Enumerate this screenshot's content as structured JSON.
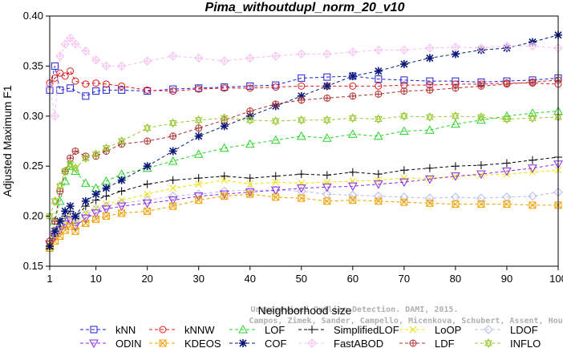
{
  "chart_data": {
    "type": "line",
    "title": "Pima_withoutdupl_norm_20_v10",
    "xlabel": "Neighborhood size",
    "ylabel": "Adjusted Maximum F1",
    "xlim": [
      1,
      100
    ],
    "ylim": [
      0.15,
      0.4
    ],
    "xticks": [
      1,
      10,
      20,
      30,
      40,
      50,
      60,
      70,
      80,
      90,
      100
    ],
    "yticks": [
      0.15,
      0.2,
      0.25,
      0.3,
      0.35,
      0.4
    ],
    "xtick_labels": [
      "1",
      "10",
      "20",
      "30",
      "40",
      "50",
      "60",
      "70",
      "80",
      "90",
      "100"
    ],
    "ytick_labels": [
      "0.15",
      "0.20",
      "0.25",
      "0.30",
      "0.35",
      "0.40"
    ],
    "grid": false,
    "legend_position": "bottom",
    "watermark": [
      "Unsupervised Outlier Detection. DAMI, 2015.",
      "Campos, Zimek, Sander, Campello, Micenkova, Schubert, Assent, Houle"
    ],
    "series": [
      {
        "name": "kNN",
        "color": "#1f1fd6",
        "marker": "square",
        "x": [
          1,
          2,
          3,
          5,
          8,
          10,
          12,
          15,
          20,
          25,
          30,
          35,
          40,
          45,
          50,
          55,
          60,
          65,
          70,
          75,
          80,
          85,
          90,
          95,
          100
        ],
        "values": [
          0.326,
          0.35,
          0.326,
          0.328,
          0.32,
          0.325,
          0.326,
          0.326,
          0.325,
          0.327,
          0.328,
          0.329,
          0.33,
          0.331,
          0.338,
          0.339,
          0.34,
          0.337,
          0.336,
          0.335,
          0.335,
          0.334,
          0.335,
          0.336,
          0.338
        ]
      },
      {
        "name": "kNNW",
        "color": "#e01a1a",
        "marker": "circle",
        "x": [
          1,
          2,
          3,
          4,
          5,
          6,
          8,
          10,
          12,
          15,
          20,
          25,
          30,
          35,
          40,
          45,
          50,
          55,
          60,
          65,
          70,
          75,
          80,
          85,
          90,
          95,
          100
        ],
        "values": [
          0.333,
          0.338,
          0.343,
          0.34,
          0.345,
          0.335,
          0.332,
          0.333,
          0.332,
          0.33,
          0.326,
          0.325,
          0.327,
          0.328,
          0.328,
          0.329,
          0.33,
          0.33,
          0.33,
          0.33,
          0.331,
          0.331,
          0.332,
          0.332,
          0.333,
          0.333,
          0.332
        ]
      },
      {
        "name": "LOF",
        "color": "#2ad42a",
        "marker": "triangle-up",
        "x": [
          1,
          2,
          3,
          4,
          5,
          6,
          8,
          10,
          12,
          15,
          20,
          25,
          30,
          35,
          40,
          45,
          50,
          55,
          60,
          65,
          70,
          75,
          80,
          85,
          90,
          95,
          100
        ],
        "values": [
          0.17,
          0.195,
          0.215,
          0.235,
          0.25,
          0.245,
          0.233,
          0.228,
          0.235,
          0.242,
          0.248,
          0.255,
          0.262,
          0.268,
          0.272,
          0.276,
          0.28,
          0.278,
          0.282,
          0.28,
          0.285,
          0.286,
          0.292,
          0.296,
          0.3,
          0.303,
          0.305
        ]
      },
      {
        "name": "SimplifiedLOF",
        "color": "#000000",
        "marker": "plus",
        "x": [
          1,
          2,
          3,
          4,
          5,
          6,
          8,
          10,
          12,
          15,
          20,
          25,
          30,
          35,
          40,
          45,
          50,
          55,
          60,
          65,
          70,
          75,
          80,
          85,
          90,
          95,
          100
        ],
        "values": [
          0.168,
          0.18,
          0.19,
          0.2,
          0.205,
          0.198,
          0.21,
          0.216,
          0.22,
          0.225,
          0.232,
          0.236,
          0.238,
          0.24,
          0.238,
          0.24,
          0.242,
          0.241,
          0.244,
          0.242,
          0.246,
          0.248,
          0.25,
          0.251,
          0.253,
          0.256,
          0.259
        ]
      },
      {
        "name": "LoOP",
        "color": "#f0e000",
        "marker": "cross",
        "x": [
          1,
          2,
          3,
          4,
          5,
          6,
          8,
          10,
          12,
          15,
          20,
          25,
          30,
          35,
          40,
          45,
          50,
          55,
          60,
          65,
          70,
          75,
          80,
          85,
          90,
          95,
          100
        ],
        "values": [
          0.172,
          0.178,
          0.185,
          0.192,
          0.198,
          0.192,
          0.203,
          0.208,
          0.212,
          0.216,
          0.222,
          0.228,
          0.232,
          0.236,
          0.232,
          0.234,
          0.233,
          0.234,
          0.235,
          0.236,
          0.238,
          0.238,
          0.24,
          0.241,
          0.242,
          0.244,
          0.246
        ]
      },
      {
        "name": "LDOF",
        "color": "#b8b8e8",
        "marker": "diamond",
        "x": [
          1,
          2,
          3,
          4,
          5,
          6,
          8,
          10,
          12,
          15,
          20,
          25,
          30,
          35,
          40,
          45,
          50,
          55,
          60,
          65,
          70,
          75,
          80,
          85,
          90,
          95,
          100
        ],
        "values": [
          0.175,
          0.182,
          0.188,
          0.195,
          0.2,
          0.194,
          0.202,
          0.207,
          0.21,
          0.213,
          0.216,
          0.22,
          0.222,
          0.225,
          0.226,
          0.226,
          0.225,
          0.222,
          0.221,
          0.22,
          0.219,
          0.218,
          0.219,
          0.218,
          0.219,
          0.22,
          0.224
        ]
      },
      {
        "name": "ODIN",
        "color": "#8a2be2",
        "marker": "triangle-down",
        "x": [
          1,
          2,
          3,
          4,
          5,
          6,
          8,
          10,
          12,
          15,
          20,
          25,
          30,
          35,
          40,
          45,
          50,
          55,
          60,
          65,
          70,
          75,
          80,
          85,
          90,
          95,
          100
        ],
        "values": [
          0.172,
          0.18,
          0.186,
          0.192,
          0.196,
          0.19,
          0.198,
          0.203,
          0.207,
          0.21,
          0.213,
          0.216,
          0.22,
          0.222,
          0.224,
          0.226,
          0.228,
          0.229,
          0.23,
          0.232,
          0.234,
          0.237,
          0.24,
          0.242,
          0.245,
          0.248,
          0.252
        ]
      },
      {
        "name": "KDEOS",
        "color": "#f0a000",
        "marker": "square-x",
        "x": [
          1,
          2,
          3,
          4,
          5,
          6,
          8,
          10,
          12,
          15,
          20,
          25,
          30,
          35,
          40,
          45,
          50,
          55,
          60,
          65,
          70,
          75,
          80,
          85,
          90,
          95,
          100
        ],
        "values": [
          0.168,
          0.175,
          0.18,
          0.186,
          0.19,
          0.185,
          0.193,
          0.197,
          0.2,
          0.203,
          0.205,
          0.21,
          0.216,
          0.22,
          0.222,
          0.219,
          0.218,
          0.215,
          0.216,
          0.215,
          0.214,
          0.213,
          0.212,
          0.212,
          0.212,
          0.211,
          0.211
        ]
      },
      {
        "name": "COF",
        "color": "#0a1a7a",
        "marker": "asterisk",
        "x": [
          1,
          2,
          3,
          4,
          5,
          6,
          8,
          10,
          12,
          15,
          20,
          25,
          30,
          35,
          40,
          45,
          50,
          55,
          60,
          65,
          70,
          75,
          80,
          85,
          90,
          95,
          100
        ],
        "values": [
          0.17,
          0.185,
          0.195,
          0.205,
          0.21,
          0.2,
          0.215,
          0.222,
          0.228,
          0.236,
          0.25,
          0.265,
          0.28,
          0.29,
          0.3,
          0.31,
          0.32,
          0.33,
          0.34,
          0.345,
          0.352,
          0.358,
          0.362,
          0.366,
          0.368,
          0.374,
          0.381
        ]
      },
      {
        "name": "FastABOD",
        "color": "#f6c0f0",
        "marker": "diamond-x",
        "x": [
          1,
          2,
          3,
          4,
          5,
          6,
          8,
          10,
          12,
          15,
          20,
          25,
          30,
          35,
          40,
          45,
          50,
          55,
          60,
          65,
          70,
          75,
          80,
          85,
          90,
          95,
          100
        ],
        "values": [
          0.33,
          0.3,
          0.36,
          0.372,
          0.378,
          0.372,
          0.365,
          0.356,
          0.35,
          0.35,
          0.355,
          0.36,
          0.358,
          0.355,
          0.358,
          0.36,
          0.362,
          0.362,
          0.364,
          0.366,
          0.366,
          0.368,
          0.369,
          0.368,
          0.37,
          0.37,
          0.368
        ]
      },
      {
        "name": "LDF",
        "color": "#b03030",
        "marker": "circle-plus",
        "x": [
          1,
          2,
          3,
          4,
          5,
          6,
          8,
          10,
          12,
          15,
          20,
          25,
          30,
          35,
          40,
          45,
          50,
          55,
          60,
          65,
          70,
          75,
          80,
          85,
          90,
          95,
          100
        ],
        "values": [
          0.175,
          0.195,
          0.225,
          0.245,
          0.258,
          0.265,
          0.26,
          0.26,
          0.265,
          0.272,
          0.275,
          0.28,
          0.288,
          0.296,
          0.305,
          0.312,
          0.316,
          0.318,
          0.32,
          0.322,
          0.325,
          0.326,
          0.328,
          0.33,
          0.332,
          0.334,
          0.336
        ]
      },
      {
        "name": "INFLO",
        "color": "#9ac832",
        "marker": "star",
        "x": [
          1,
          2,
          3,
          4,
          5,
          6,
          8,
          10,
          12,
          15,
          20,
          25,
          30,
          35,
          40,
          45,
          50,
          55,
          60,
          65,
          70,
          75,
          80,
          85,
          90,
          95,
          100
        ],
        "values": [
          0.2,
          0.215,
          0.23,
          0.245,
          0.252,
          0.248,
          0.258,
          0.262,
          0.268,
          0.275,
          0.288,
          0.293,
          0.296,
          0.298,
          0.296,
          0.295,
          0.296,
          0.296,
          0.298,
          0.297,
          0.3,
          0.299,
          0.3,
          0.299,
          0.297,
          0.298,
          0.299
        ]
      }
    ]
  }
}
